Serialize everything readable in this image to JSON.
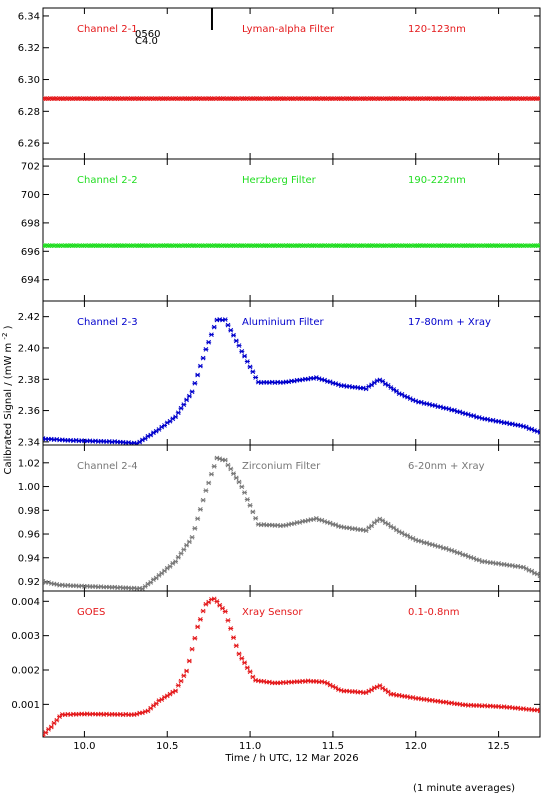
{
  "chart_data": {
    "type": "scatter",
    "xlabel": "Time / h UTC, 12 Mar 2026",
    "ylabel_main": "Calibrated Signal / (mW m",
    "ylabel_sup": "-2",
    "ylabel_end": ")",
    "footnote": "(1 minute averages)",
    "xlim": [
      9.75,
      12.75
    ],
    "xticks": [
      "10.0",
      "10.5",
      "11.0",
      "11.5",
      "12.0",
      "12.5"
    ],
    "xtick_values": [
      10.0,
      10.5,
      11.0,
      11.5,
      12.0,
      12.5
    ],
    "panels": [
      {
        "label": "Channel 2-1",
        "filter": "Lyman-alpha Filter",
        "band": "120-123nm",
        "color": "#e41a1c",
        "ylim": [
          6.25,
          6.345
        ],
        "yticks": [
          "6.26",
          "6.28",
          "6.30",
          "6.32",
          "6.34"
        ],
        "ytick_values": [
          6.26,
          6.28,
          6.3,
          6.32,
          6.34
        ],
        "annotation": "0560\nC4.0",
        "annotation_lines": [
          "0560",
          "C4.0"
        ],
        "marker_time": 10.77,
        "points": [
          [
            9.75,
            6.288
          ],
          [
            12.75,
            6.288
          ]
        ]
      },
      {
        "label": "Channel 2-2",
        "filter": "Herzberg Filter",
        "band": "190-222nm",
        "color": "#22dd22",
        "ylim": [
          692.5,
          702.5
        ],
        "yticks": [
          "694",
          "696",
          "698",
          "700",
          "702"
        ],
        "ytick_values": [
          694,
          696,
          698,
          700,
          702
        ],
        "points": [
          [
            9.75,
            696.4
          ],
          [
            12.75,
            696.4
          ]
        ]
      },
      {
        "label": "Channel 2-3",
        "filter": "Aluminium Filter",
        "band": "17-80nm + Xray",
        "color": "#0000cc",
        "ylim": [
          2.338,
          2.43
        ],
        "yticks": [
          "2.34",
          "2.36",
          "2.38",
          "2.40",
          "2.42"
        ],
        "ytick_values": [
          2.34,
          2.36,
          2.38,
          2.4,
          2.42
        ],
        "points": [
          [
            9.75,
            2.342
          ],
          [
            9.9,
            2.341
          ],
          [
            10.2,
            2.34
          ],
          [
            10.32,
            2.339
          ],
          [
            10.45,
            2.348
          ],
          [
            10.55,
            2.356
          ],
          [
            10.65,
            2.372
          ],
          [
            10.73,
            2.398
          ],
          [
            10.8,
            2.418
          ],
          [
            10.85,
            2.418
          ],
          [
            10.95,
            2.398
          ],
          [
            11.05,
            2.378
          ],
          [
            11.2,
            2.378
          ],
          [
            11.4,
            2.381
          ],
          [
            11.55,
            2.376
          ],
          [
            11.7,
            2.374
          ],
          [
            11.78,
            2.38
          ],
          [
            11.9,
            2.371
          ],
          [
            12.0,
            2.366
          ],
          [
            12.2,
            2.361
          ],
          [
            12.4,
            2.355
          ],
          [
            12.5,
            2.353
          ],
          [
            12.65,
            2.35
          ],
          [
            12.75,
            2.346
          ]
        ]
      },
      {
        "label": "Channel 2-4",
        "filter": "Zirconium Filter",
        "band": "6-20nm + Xray",
        "color": "#777777",
        "ylim": [
          0.912,
          1.035
        ],
        "yticks": [
          "0.92",
          "0.94",
          "0.96",
          "0.98",
          "1.00",
          "1.02"
        ],
        "ytick_values": [
          0.92,
          0.94,
          0.96,
          0.98,
          1.0,
          1.02
        ],
        "points": [
          [
            9.75,
            0.92
          ],
          [
            9.85,
            0.917
          ],
          [
            10.0,
            0.916
          ],
          [
            10.2,
            0.915
          ],
          [
            10.35,
            0.914
          ],
          [
            10.45,
            0.925
          ],
          [
            10.55,
            0.937
          ],
          [
            10.65,
            0.957
          ],
          [
            10.73,
            0.995
          ],
          [
            10.8,
            1.024
          ],
          [
            10.85,
            1.022
          ],
          [
            10.95,
            1.0
          ],
          [
            11.05,
            0.968
          ],
          [
            11.2,
            0.967
          ],
          [
            11.4,
            0.973
          ],
          [
            11.55,
            0.966
          ],
          [
            11.7,
            0.963
          ],
          [
            11.78,
            0.973
          ],
          [
            11.9,
            0.962
          ],
          [
            12.0,
            0.955
          ],
          [
            12.2,
            0.947
          ],
          [
            12.4,
            0.937
          ],
          [
            12.5,
            0.935
          ],
          [
            12.65,
            0.932
          ],
          [
            12.75,
            0.925
          ]
        ]
      },
      {
        "label": "GOES",
        "filter": "Xray Sensor",
        "band": "0.1-0.8nm",
        "color": "#e41a1c",
        "ylim": [
          5e-05,
          0.0043
        ],
        "yticks": [
          "0.001",
          "0.002",
          "0.003",
          "0.004"
        ],
        "ytick_values": [
          0.001,
          0.002,
          0.003,
          0.004
        ],
        "points": [
          [
            9.75,
            0.0001
          ],
          [
            9.8,
            0.00035
          ],
          [
            9.86,
            0.0007
          ],
          [
            10.0,
            0.00072
          ],
          [
            10.3,
            0.0007
          ],
          [
            10.38,
            0.0008
          ],
          [
            10.45,
            0.0011
          ],
          [
            10.55,
            0.0014
          ],
          [
            10.62,
            0.002
          ],
          [
            10.68,
            0.0032
          ],
          [
            10.73,
            0.0039
          ],
          [
            10.78,
            0.0041
          ],
          [
            10.85,
            0.0037
          ],
          [
            10.93,
            0.0025
          ],
          [
            11.03,
            0.0017
          ],
          [
            11.15,
            0.00162
          ],
          [
            11.35,
            0.00168
          ],
          [
            11.45,
            0.00165
          ],
          [
            11.55,
            0.0014
          ],
          [
            11.7,
            0.00134
          ],
          [
            11.78,
            0.00155
          ],
          [
            11.85,
            0.0013
          ],
          [
            12.0,
            0.00118
          ],
          [
            12.3,
            0.00098
          ],
          [
            12.45,
            0.00095
          ],
          [
            12.55,
            0.00092
          ],
          [
            12.75,
            0.00082
          ]
        ]
      }
    ]
  }
}
